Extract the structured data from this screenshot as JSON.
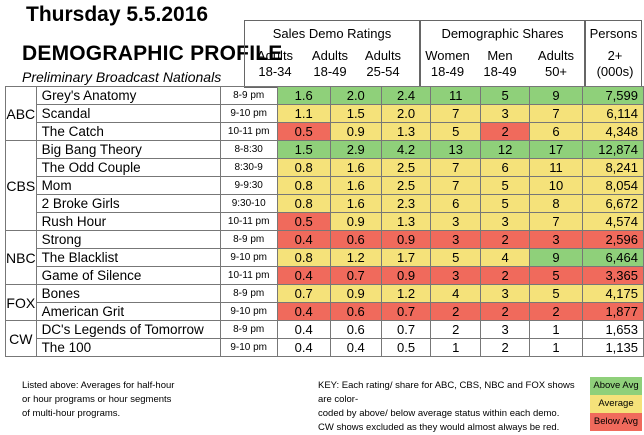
{
  "header": {
    "title_date": "Thursday 5.5.2016",
    "title_main": "DEMOGRAPHIC PROFILE",
    "subtitle": "Preliminary Broadcast Nationals"
  },
  "groups": {
    "sales": "Sales Demo Ratings",
    "shares": "Demographic Shares",
    "persons": "Persons"
  },
  "columns": [
    {
      "top": "Adults",
      "bottom": "18-34"
    },
    {
      "top": "Adults",
      "bottom": "18-49"
    },
    {
      "top": "Adults",
      "bottom": "25-54"
    },
    {
      "top": "Women",
      "bottom": "18-49"
    },
    {
      "top": "Men",
      "bottom": "18-49"
    },
    {
      "top": "Adults",
      "bottom": "50+"
    },
    {
      "top": "2+",
      "bottom": "(000s)"
    }
  ],
  "colors": {
    "above": "#8fd07a",
    "average": "#f5e27a",
    "below": "#f06a5c",
    "none": "#ffffff"
  },
  "networks": [
    {
      "name": "ABC",
      "rows": [
        {
          "show": "Grey's Anatomy",
          "slot": "8-9 pm",
          "values": [
            "1.6",
            "2.0",
            "2.4",
            "11",
            "5",
            "9",
            "7,599"
          ],
          "c": [
            "a",
            "a",
            "a",
            "a",
            "a",
            "a",
            "a"
          ]
        },
        {
          "show": "Scandal",
          "slot": "9-10 pm",
          "values": [
            "1.1",
            "1.5",
            "2.0",
            "7",
            "3",
            "7",
            "6,114"
          ],
          "c": [
            "m",
            "m",
            "m",
            "m",
            "m",
            "m",
            "m"
          ]
        },
        {
          "show": "The Catch",
          "slot": "10-11 pm",
          "values": [
            "0.5",
            "0.9",
            "1.3",
            "5",
            "2",
            "6",
            "4,348"
          ],
          "c": [
            "b",
            "m",
            "m",
            "m",
            "b",
            "m",
            "m"
          ]
        }
      ]
    },
    {
      "name": "CBS",
      "rows": [
        {
          "show": "Big Bang Theory",
          "slot": "8-8:30",
          "values": [
            "1.5",
            "2.9",
            "4.2",
            "13",
            "12",
            "17",
            "12,874"
          ],
          "c": [
            "a",
            "a",
            "a",
            "a",
            "a",
            "a",
            "a"
          ]
        },
        {
          "show": "The Odd Couple",
          "slot": "8:30-9",
          "values": [
            "0.8",
            "1.6",
            "2.5",
            "7",
            "6",
            "11",
            "8,241"
          ],
          "c": [
            "m",
            "m",
            "m",
            "m",
            "m",
            "m",
            "m"
          ]
        },
        {
          "show": "Mom",
          "slot": "9-9:30",
          "values": [
            "0.8",
            "1.6",
            "2.5",
            "7",
            "5",
            "10",
            "8,054"
          ],
          "c": [
            "m",
            "m",
            "m",
            "m",
            "m",
            "m",
            "m"
          ]
        },
        {
          "show": "2 Broke Girls",
          "slot": "9:30-10",
          "values": [
            "0.8",
            "1.6",
            "2.3",
            "6",
            "5",
            "8",
            "6,672"
          ],
          "c": [
            "m",
            "m",
            "m",
            "m",
            "m",
            "m",
            "m"
          ]
        },
        {
          "show": "Rush Hour",
          "slot": "10-11 pm",
          "values": [
            "0.5",
            "0.9",
            "1.3",
            "3",
            "3",
            "7",
            "4,574"
          ],
          "c": [
            "b",
            "m",
            "m",
            "m",
            "m",
            "m",
            "m"
          ]
        }
      ]
    },
    {
      "name": "NBC",
      "rows": [
        {
          "show": "Strong",
          "slot": "8-9 pm",
          "values": [
            "0.4",
            "0.6",
            "0.9",
            "3",
            "2",
            "3",
            "2,596"
          ],
          "c": [
            "b",
            "b",
            "b",
            "b",
            "b",
            "b",
            "b"
          ]
        },
        {
          "show": "The Blacklist",
          "slot": "9-10 pm",
          "values": [
            "0.8",
            "1.2",
            "1.7",
            "5",
            "4",
            "9",
            "6,464"
          ],
          "c": [
            "m",
            "m",
            "m",
            "m",
            "m",
            "a",
            "a"
          ]
        },
        {
          "show": "Game of Silence",
          "slot": "10-11 pm",
          "values": [
            "0.4",
            "0.7",
            "0.9",
            "3",
            "2",
            "5",
            "3,365"
          ],
          "c": [
            "b",
            "b",
            "b",
            "b",
            "b",
            "b",
            "b"
          ]
        }
      ]
    },
    {
      "name": "FOX",
      "rows": [
        {
          "show": "Bones",
          "slot": "8-9 pm",
          "values": [
            "0.7",
            "0.9",
            "1.2",
            "4",
            "3",
            "5",
            "4,175"
          ],
          "c": [
            "m",
            "m",
            "m",
            "m",
            "m",
            "m",
            "m"
          ]
        },
        {
          "show": "American Grit",
          "slot": "9-10 pm",
          "values": [
            "0.4",
            "0.6",
            "0.7",
            "2",
            "2",
            "2",
            "1,877"
          ],
          "c": [
            "b",
            "b",
            "b",
            "b",
            "b",
            "b",
            "b"
          ]
        }
      ]
    },
    {
      "name": "CW",
      "rows": [
        {
          "show": "DC's Legends of Tomorrow",
          "slot": "8-9 pm",
          "values": [
            "0.4",
            "0.6",
            "0.7",
            "2",
            "3",
            "1",
            "1,653"
          ],
          "c": [
            "n",
            "n",
            "n",
            "n",
            "n",
            "n",
            "n"
          ]
        },
        {
          "show": "The 100",
          "slot": "9-10 pm",
          "values": [
            "0.4",
            "0.4",
            "0.5",
            "1",
            "2",
            "1",
            "1,135"
          ],
          "c": [
            "n",
            "n",
            "n",
            "n",
            "n",
            "n",
            "n"
          ]
        }
      ]
    }
  ],
  "footer": {
    "left_lines": [
      "Listed above: Averages for half-hour",
      "or hour programs or hour segments",
      "of multi-hour programs."
    ],
    "key_lines": [
      "KEY: Each rating/ share for ABC, CBS, NBC and FOX shows are color-",
      "coded by above/ below average status within each demo.",
      "CW shows excluded as they would almost always be red."
    ],
    "legend": [
      {
        "label": "Above Avg",
        "k": "above"
      },
      {
        "label": "Average",
        "k": "average"
      },
      {
        "label": "Below Avg",
        "k": "below"
      }
    ]
  }
}
